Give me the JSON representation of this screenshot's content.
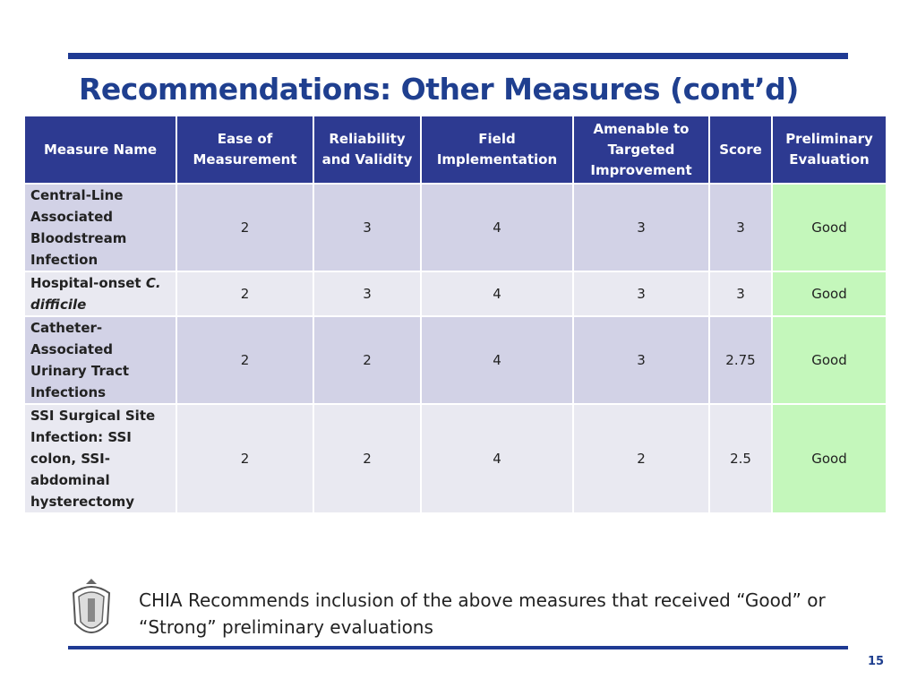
{
  "title": "Recommendations: Other Measures (cont’d)",
  "table": {
    "headers": [
      "Measure Name",
      "Ease of Measurement",
      "Reliability and Validity",
      "Field Implementation",
      "Amenable to Targeted Improvement",
      "Score",
      "Preliminary Evaluation"
    ],
    "rows": [
      {
        "name": "Central-Line Associated Bloodstream Infection",
        "values": [
          2,
          3,
          4,
          3,
          3
        ],
        "evaluation": "Good"
      },
      {
        "name": "Hospital-onset",
        "name_italic": "C. difficile",
        "values": [
          2,
          3,
          4,
          3,
          3
        ],
        "evaluation": "Good"
      },
      {
        "name": "Catheter-Associated Urinary Tract Infections",
        "values": [
          2,
          2,
          4,
          3,
          2.75
        ],
        "evaluation": "Good"
      },
      {
        "name": "SSI Surgical Site Infection:  SSI colon, SSI-abdominal hysterectomy",
        "values": [
          2,
          2,
          4,
          2,
          2.5
        ],
        "evaluation": "Good"
      }
    ]
  },
  "note": "CHIA Recommends inclusion of the above measures that received “Good” or “Strong” preliminary evaluations",
  "page_number": "15"
}
